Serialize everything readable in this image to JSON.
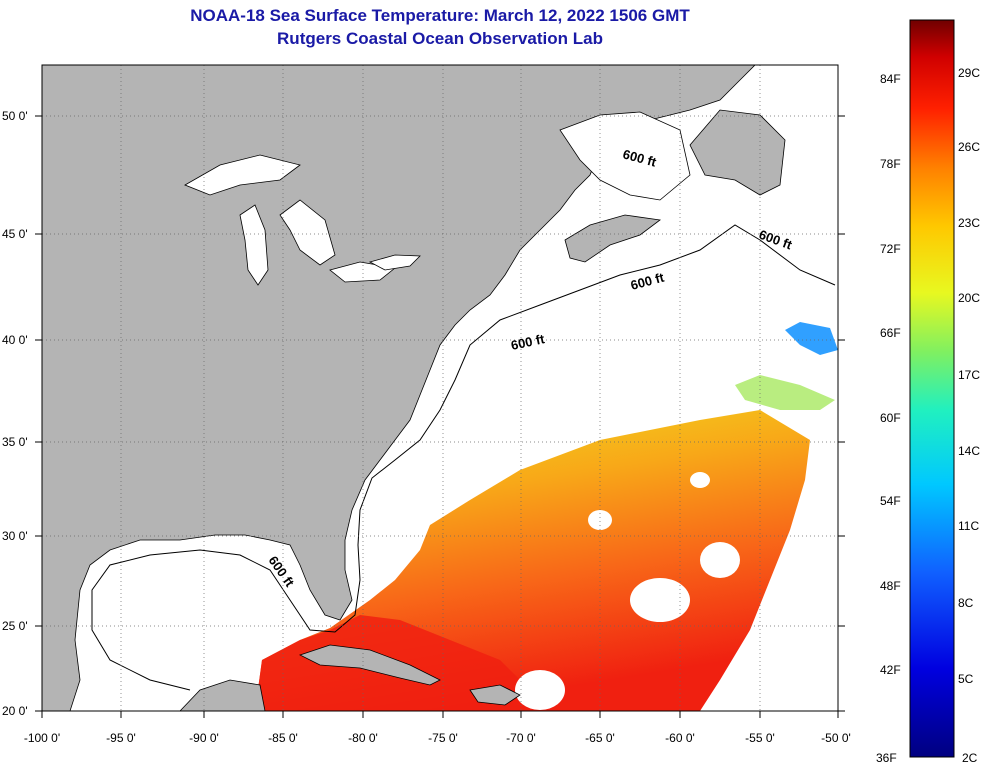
{
  "title": {
    "line1": "NOAA-18 Sea Surface Temperature:  March 12, 2022 1506 GMT",
    "line2": "Rutgers Coastal Ocean Observation Lab"
  },
  "map": {
    "lon_labels": [
      "-100 0'",
      "-95 0'",
      "-90 0'",
      "-85 0'",
      "-80 0'",
      "-75 0'",
      "-70 0'",
      "-65 0'",
      "-60 0'",
      "-55 0'",
      "-50 0'"
    ],
    "lat_labels": [
      "50 0'",
      "45 0'",
      "40 0'",
      "35 0'",
      "30 0'",
      "25 0'",
      "20 0'"
    ],
    "contour_labels": [
      "600 ft",
      "600 ft",
      "600 ft",
      "600 ft",
      "600 ft"
    ],
    "colors": {
      "land": "#b4b4b4",
      "water": "#ffffff",
      "grid": "#555555"
    }
  },
  "colorbar": {
    "fahrenheit_labels": [
      "84F",
      "78F",
      "72F",
      "66F",
      "60F",
      "54F",
      "48F",
      "42F",
      "36F"
    ],
    "celsius_labels": [
      "29C",
      "26C",
      "23C",
      "20C",
      "17C",
      "14C",
      "11C",
      "8C",
      "5C",
      "2C"
    ]
  }
}
